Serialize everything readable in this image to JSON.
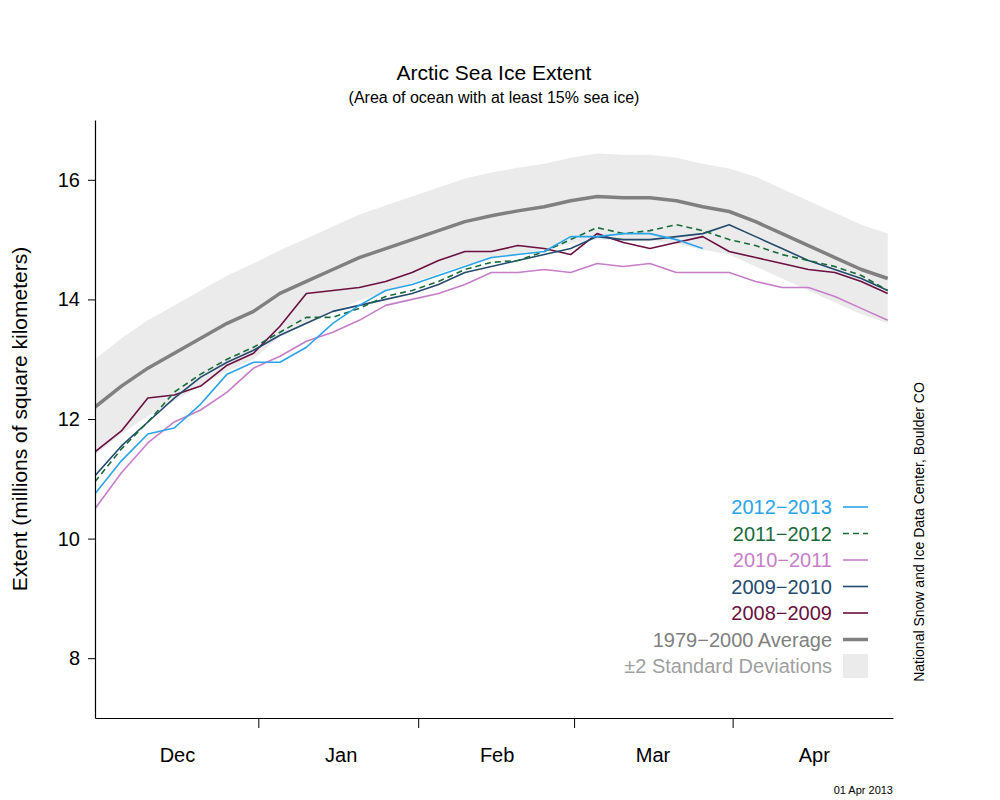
{
  "chart_data": {
    "type": "line",
    "title": "Arctic Sea Ice Extent",
    "subtitle": "(Area of ocean with at least 15% sea ice)",
    "y_label": "Extent (millions of square kilometers)",
    "annotations": [
      "National Snow and Ice Data Center, Boulder CO",
      "01 Apr 2013"
    ],
    "x": [
      0,
      5,
      10,
      15,
      20,
      25,
      30,
      35,
      40,
      45,
      50,
      55,
      60,
      65,
      70,
      75,
      80,
      85,
      90,
      95,
      100,
      105,
      110,
      115,
      120,
      125,
      130,
      135,
      140,
      145,
      150
    ],
    "xlim": [
      0,
      151
    ],
    "xticks": [
      {
        "value": 15.5,
        "label": "Dec"
      },
      {
        "value": 46.5,
        "label": "Jan"
      },
      {
        "value": 76,
        "label": "Feb"
      },
      {
        "value": 105.5,
        "label": "Mar"
      },
      {
        "value": 136,
        "label": "Apr"
      }
    ],
    "ylim": [
      7,
      17
    ],
    "yticks": [
      8,
      10,
      12,
      14,
      16
    ],
    "legend": "lower right",
    "grid": false,
    "series": [
      {
        "name": "2012−2013",
        "color": "#2aa4e8",
        "type": "line",
        "line_style": "solid",
        "values": [
          10.75,
          11.3,
          11.75,
          11.85,
          12.25,
          12.75,
          12.95,
          12.95,
          13.2,
          13.6,
          13.9,
          14.15,
          14.25,
          14.4,
          14.55,
          14.7,
          14.75,
          14.8,
          15.05,
          15.05,
          15.1,
          15.1,
          15.0,
          14.85,
          null,
          null,
          null,
          null,
          null,
          null,
          null
        ]
      },
      {
        "name": "2011−2012",
        "color": "#1a6b3a",
        "type": "line",
        "line_style": "dashed",
        "values": [
          10.95,
          11.5,
          11.95,
          12.45,
          12.75,
          13.0,
          13.2,
          13.45,
          13.7,
          13.7,
          13.85,
          14.05,
          14.15,
          14.3,
          14.5,
          14.62,
          14.65,
          14.8,
          15.0,
          15.2,
          15.1,
          15.15,
          15.25,
          15.15,
          15.0,
          14.9,
          14.75,
          14.65,
          14.55,
          14.4,
          14.15
        ]
      },
      {
        "name": "2010−2011",
        "color": "#c77ec9",
        "type": "line",
        "line_style": "solid",
        "values": [
          10.5,
          11.1,
          11.6,
          11.95,
          12.15,
          12.45,
          12.85,
          13.05,
          13.3,
          13.45,
          13.65,
          13.9,
          14.0,
          14.1,
          14.25,
          14.45,
          14.45,
          14.5,
          14.45,
          14.6,
          14.55,
          14.6,
          14.45,
          14.45,
          14.45,
          14.3,
          14.2,
          14.2,
          14.05,
          13.85,
          13.65
        ]
      },
      {
        "name": "2009−2010",
        "color": "#244a6e",
        "type": "line",
        "line_style": "solid",
        "values": [
          11.05,
          11.55,
          11.95,
          12.35,
          12.7,
          12.95,
          13.15,
          13.4,
          13.6,
          13.8,
          13.9,
          14.0,
          14.1,
          14.25,
          14.45,
          14.55,
          14.65,
          14.75,
          14.85,
          15.05,
          15.0,
          15.0,
          15.05,
          15.1,
          15.25,
          15.05,
          14.85,
          14.65,
          14.5,
          14.35,
          14.15
        ]
      },
      {
        "name": "2008−2009",
        "color": "#6b1040",
        "type": "line",
        "line_style": "solid",
        "values": [
          11.45,
          11.8,
          12.35,
          12.4,
          12.55,
          12.9,
          13.1,
          13.55,
          14.1,
          14.15,
          14.2,
          14.3,
          14.45,
          14.65,
          14.8,
          14.8,
          14.9,
          14.85,
          14.75,
          15.1,
          14.95,
          14.85,
          14.95,
          15.05,
          14.8,
          14.7,
          14.6,
          14.5,
          14.45,
          14.3,
          14.1
        ]
      },
      {
        "name": "1979−2000 Average",
        "color": "#808080",
        "type": "line",
        "line_style": "solid",
        "values": [
          12.2,
          12.55,
          12.85,
          13.1,
          13.35,
          13.6,
          13.8,
          14.1,
          14.3,
          14.5,
          14.7,
          14.85,
          15.0,
          15.15,
          15.3,
          15.4,
          15.48,
          15.55,
          15.65,
          15.72,
          15.7,
          15.7,
          15.65,
          15.55,
          15.47,
          15.3,
          15.1,
          14.9,
          14.7,
          14.5,
          14.35
        ]
      },
      {
        "name": "±2 Standard Deviations",
        "color": "#ebebeb",
        "type": "band",
        "upper": [
          13.0,
          13.35,
          13.65,
          13.9,
          14.15,
          14.4,
          14.6,
          14.82,
          15.02,
          15.22,
          15.42,
          15.57,
          15.72,
          15.87,
          16.02,
          16.12,
          16.2,
          16.27,
          16.37,
          16.44,
          16.42,
          16.42,
          16.37,
          16.27,
          16.19,
          16.05,
          15.85,
          15.65,
          15.45,
          15.25,
          15.1
        ],
        "lower": [
          11.4,
          11.75,
          12.05,
          12.3,
          12.55,
          12.8,
          13.0,
          13.38,
          13.58,
          13.78,
          13.98,
          14.13,
          14.28,
          14.43,
          14.58,
          14.68,
          14.76,
          14.83,
          14.93,
          15.0,
          14.98,
          14.98,
          14.93,
          14.83,
          14.75,
          14.55,
          14.35,
          14.15,
          13.95,
          13.75,
          13.6
        ]
      }
    ]
  }
}
